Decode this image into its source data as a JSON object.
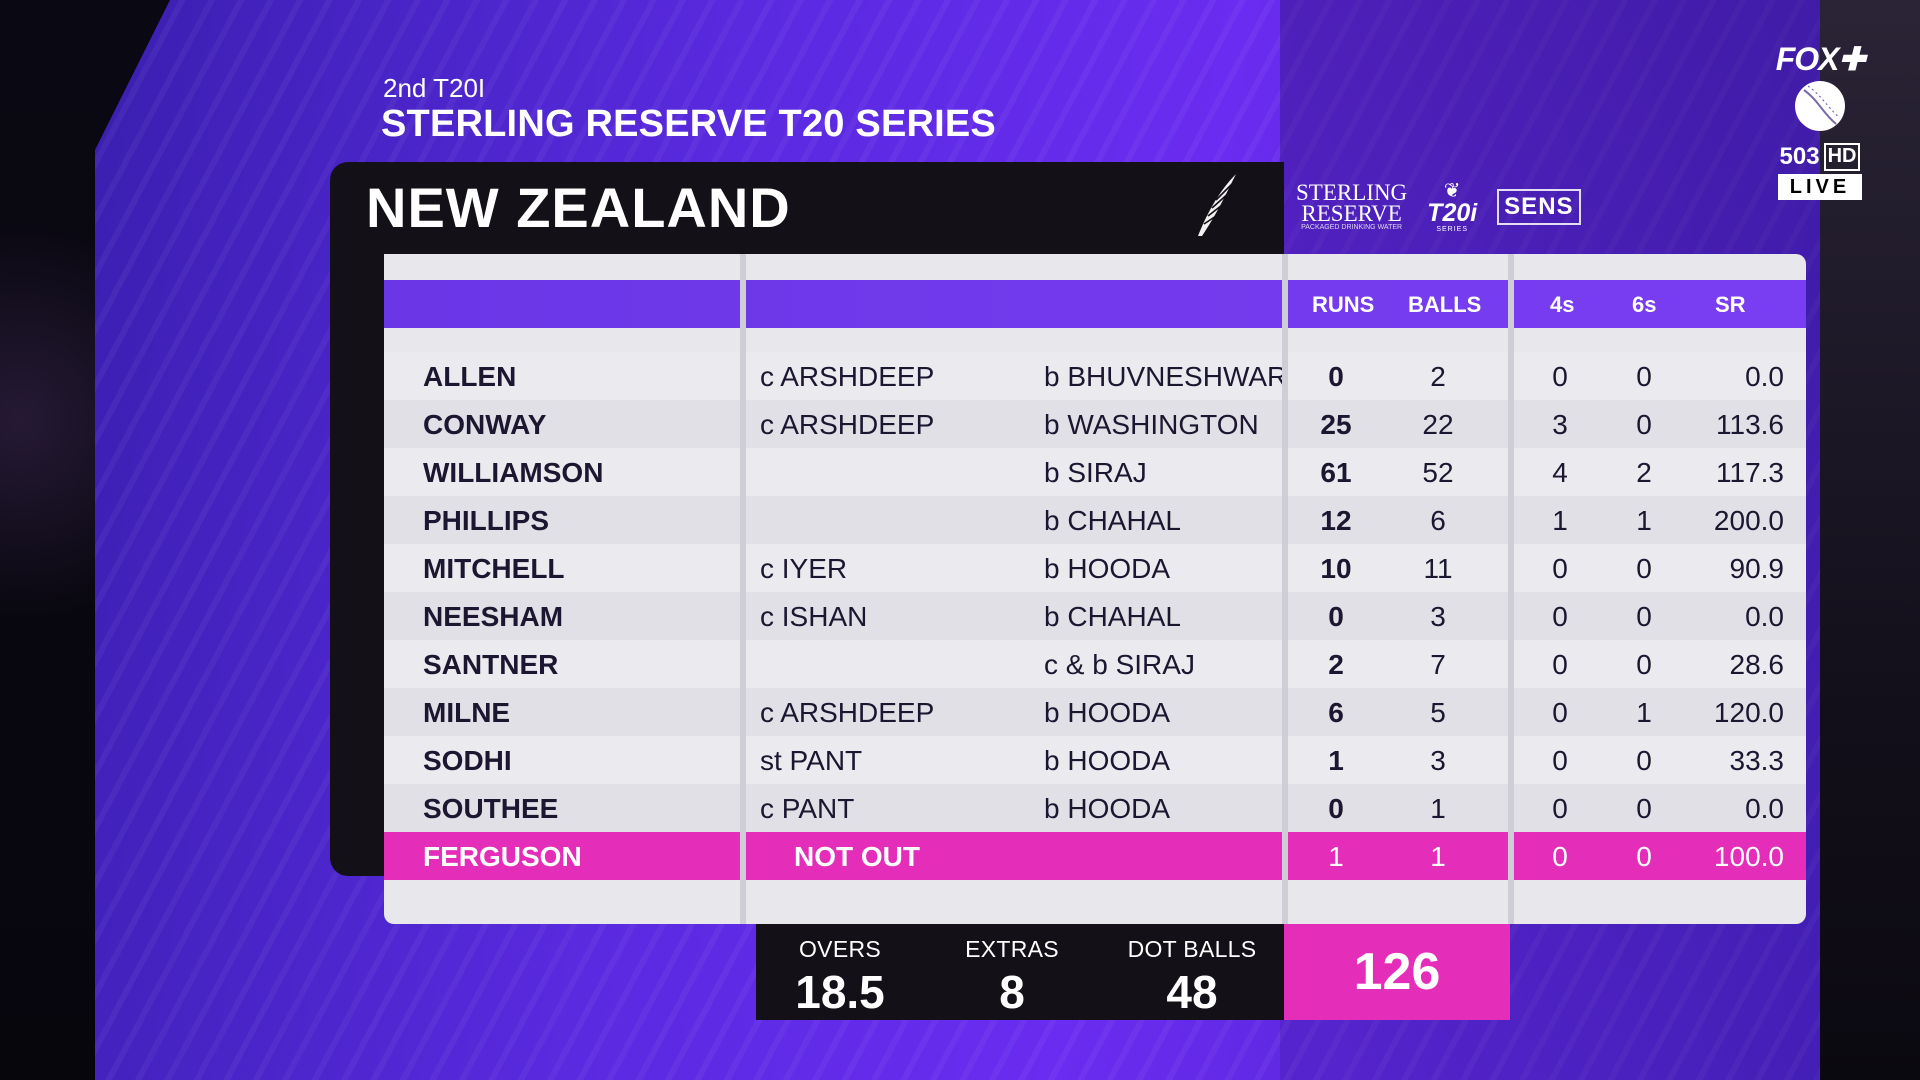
{
  "header": {
    "match": "2nd T20I",
    "series": "STERLING RESERVE T20 SERIES",
    "team": "NEW ZEALAND"
  },
  "sponsor": {
    "name_line1": "STERLING",
    "name_line2": "RESERVE",
    "tagline": "PACKAGED DRINKING WATER",
    "t20_logo": "T20i",
    "t20_word": "SERIES",
    "sens": "SENS"
  },
  "columns": {
    "runs": "RUNS",
    "balls": "BALLS",
    "fours": "4s",
    "sixes": "6s",
    "sr": "SR"
  },
  "batters": [
    {
      "name": "ALLEN",
      "catch": "c ARSHDEEP",
      "bowled": "b BHUVNESHWAR",
      "runs": "0",
      "balls": "2",
      "fours": "0",
      "sixes": "0",
      "sr": "0.0"
    },
    {
      "name": "CONWAY",
      "catch": "c ARSHDEEP",
      "bowled": "b WASHINGTON",
      "runs": "25",
      "balls": "22",
      "fours": "3",
      "sixes": "0",
      "sr": "113.6"
    },
    {
      "name": "WILLIAMSON",
      "catch": "",
      "bowled": "b SIRAJ",
      "runs": "61",
      "balls": "52",
      "fours": "4",
      "sixes": "2",
      "sr": "117.3"
    },
    {
      "name": "PHILLIPS",
      "catch": "",
      "bowled": "b CHAHAL",
      "runs": "12",
      "balls": "6",
      "fours": "1",
      "sixes": "1",
      "sr": "200.0"
    },
    {
      "name": "MITCHELL",
      "catch": "c IYER",
      "bowled": "b HOODA",
      "runs": "10",
      "balls": "11",
      "fours": "0",
      "sixes": "0",
      "sr": "90.9"
    },
    {
      "name": "NEESHAM",
      "catch": "c ISHAN",
      "bowled": "b CHAHAL",
      "runs": "0",
      "balls": "3",
      "fours": "0",
      "sixes": "0",
      "sr": "0.0"
    },
    {
      "name": "SANTNER",
      "catch": "",
      "bowled": "c & b SIRAJ",
      "runs": "2",
      "balls": "7",
      "fours": "0",
      "sixes": "0",
      "sr": "28.6"
    },
    {
      "name": "MILNE",
      "catch": "c ARSHDEEP",
      "bowled": "b HOODA",
      "runs": "6",
      "balls": "5",
      "fours": "0",
      "sixes": "1",
      "sr": "120.0"
    },
    {
      "name": "SODHI",
      "catch": "st PANT",
      "bowled": "b HOODA",
      "runs": "1",
      "balls": "3",
      "fours": "0",
      "sixes": "0",
      "sr": "33.3"
    },
    {
      "name": "SOUTHEE",
      "catch": "c PANT",
      "bowled": "b HOODA",
      "runs": "0",
      "balls": "1",
      "fours": "0",
      "sixes": "0",
      "sr": "0.0"
    }
  ],
  "not_out": {
    "name": "FERGUSON",
    "status": "NOT OUT",
    "runs": "1",
    "balls": "1",
    "fours": "0",
    "sixes": "0",
    "sr": "100.0"
  },
  "totals": {
    "overs_label": "OVERS",
    "overs": "18.5",
    "extras_label": "EXTRAS",
    "extras": "8",
    "dots_label": "DOT BALLS",
    "dots": "48",
    "total": "126"
  },
  "channel": {
    "network": "FOX",
    "number": "503",
    "hd": "HD",
    "live": "LIVE"
  },
  "colors": {
    "accent_purple": "#6a36e6",
    "highlight_pink": "#e42db8",
    "panel_dark": "#141017"
  }
}
